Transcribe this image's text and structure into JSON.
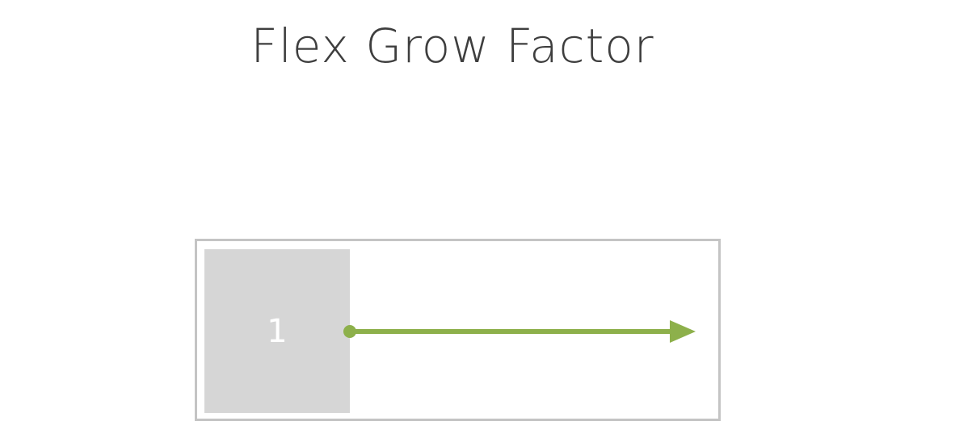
{
  "slide": {
    "title": "Flex Grow Factor"
  },
  "diagram": {
    "item_label": "1",
    "colors": {
      "container_border": "#c4c4c4",
      "item_fill": "#d6d6d6",
      "arrow": "#8db04b",
      "title_text": "#3e3e3e"
    },
    "arrow_direction": "right"
  }
}
